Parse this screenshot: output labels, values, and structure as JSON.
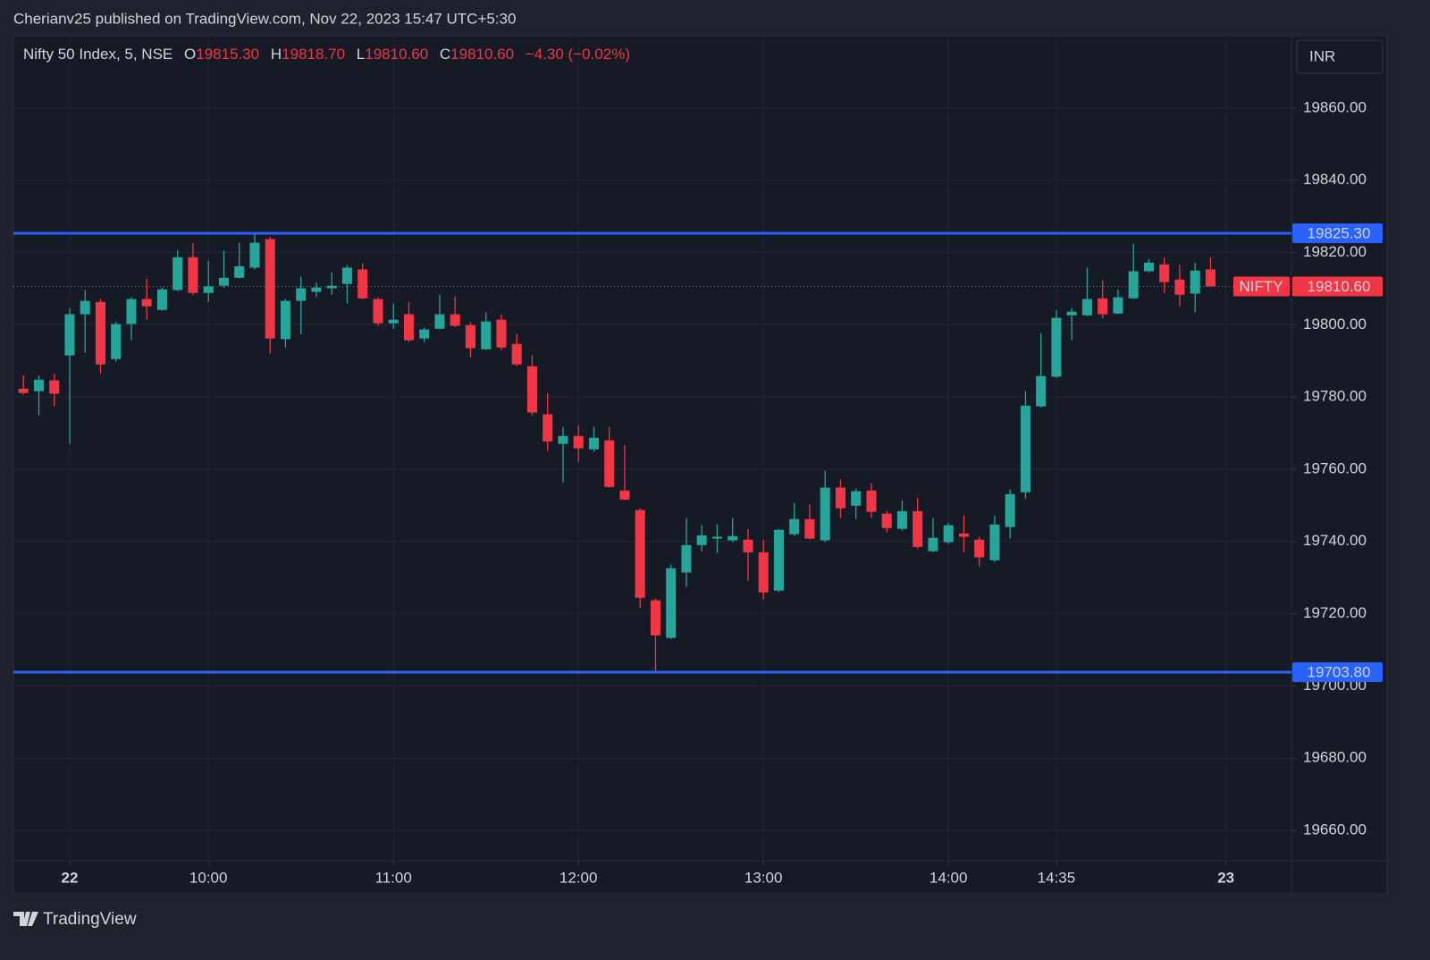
{
  "header": {
    "published": "Cherianv25 published on TradingView.com, Nov 22, 2023 15:47 UTC+5:30",
    "symbol": "Nifty 50 Index, 5, NSE",
    "ohlc": [
      {
        "label": "O",
        "value": "19815.30"
      },
      {
        "label": "H",
        "value": "19818.70"
      },
      {
        "label": "L",
        "value": "19810.60"
      },
      {
        "label": "C",
        "value": "19810.60"
      }
    ],
    "change": "−4.30 (−0.02%)"
  },
  "footer": {
    "brand": "TradingView"
  },
  "chart_data": {
    "type": "candlestick",
    "currency": "INR",
    "up_color": "#26a69a",
    "down_color": "#f23645",
    "grid": true,
    "x": [
      -3,
      -2,
      -1,
      0,
      1,
      2,
      3,
      4,
      5,
      6,
      7,
      8,
      9,
      10,
      11,
      12,
      13,
      14,
      15,
      16,
      17,
      18,
      19,
      20,
      21,
      22,
      23,
      24,
      25,
      26,
      27,
      28,
      29,
      30,
      31,
      32,
      33,
      34,
      35,
      36,
      37,
      38,
      39,
      40,
      41,
      42,
      43,
      44,
      45,
      46,
      47,
      48,
      49,
      50,
      51,
      52,
      53,
      54,
      55,
      56,
      57,
      58,
      59,
      60,
      61,
      62,
      63,
      64,
      65,
      66,
      67,
      68,
      69,
      70,
      71,
      72,
      73,
      74
    ],
    "open": [
      19782.3,
      19781.6,
      19784.6,
      19791.5,
      19802.9,
      19806.3,
      19790.5,
      19800.2,
      19807.1,
      19804.1,
      19809.6,
      19818.7,
      19808.8,
      19810.8,
      19813.0,
      19815.8,
      19823.7,
      19796.0,
      19806.6,
      19809.1,
      19810.1,
      19811.3,
      19815.3,
      19807.1,
      19800.4,
      19802.9,
      19796.2,
      19798.9,
      19802.9,
      19799.9,
      19793.2,
      19801.4,
      19794.7,
      19788.5,
      19775.2,
      19767.0,
      19769.2,
      19765.5,
      19768.0,
      19754.1,
      19748.7,
      19723.7,
      19713.3,
      19731.4,
      19739.0,
      19740.8,
      19740.3,
      19740.5,
      19737.0,
      19726.4,
      19742.0,
      19746.2,
      19740.3,
      19754.9,
      19749.9,
      19754.1,
      19747.7,
      19743.5,
      19748.4,
      19737.3,
      19739.8,
      19742.2,
      19740.5,
      19734.8,
      19744.0,
      19753.6,
      19777.4,
      19785.6,
      19802.6,
      19802.6,
      19807.3,
      19803.1,
      19807.3,
      19814.8,
      19816.7,
      19812.5,
      19808.6,
      19815.3
    ],
    "high": [
      19786.0,
      19786.0,
      19786.5,
      19804.6,
      19809.6,
      19807.1,
      19800.9,
      19807.6,
      19812.8,
      19810.3,
      19820.7,
      19822.7,
      19817.7,
      19820.5,
      19822.7,
      19825.3,
      19824.4,
      19807.1,
      19813.3,
      19811.8,
      19814.5,
      19816.5,
      19817.0,
      19807.6,
      19805.9,
      19806.3,
      19799.2,
      19808.3,
      19807.8,
      19800.7,
      19803.4,
      19802.9,
      19797.4,
      19791.5,
      19781.1,
      19771.7,
      19772.2,
      19771.7,
      19771.7,
      19766.7,
      19749.2,
      19724.2,
      19733.6,
      19746.5,
      19744.5,
      19744.7,
      19746.5,
      19743.5,
      19740.5,
      19743.5,
      19750.7,
      19750.2,
      19759.6,
      19757.1,
      19754.6,
      19756.1,
      19748.4,
      19751.4,
      19752.1,
      19746.5,
      19745.2,
      19747.2,
      19741.3,
      19747.2,
      19754.4,
      19781.6,
      19797.7,
      19804.1,
      19804.6,
      19815.8,
      19812.3,
      19809.8,
      19822.4,
      19818.2,
      19818.7,
      19816.5,
      19817.2,
      19818.7
    ],
    "low": [
      19780.6,
      19774.9,
      19777.4,
      19767.0,
      19792.2,
      19786.5,
      19789.8,
      19795.7,
      19801.4,
      19803.9,
      19809.3,
      19808.3,
      19806.3,
      19810.3,
      19812.8,
      19815.3,
      19792.0,
      19793.7,
      19797.4,
      19807.6,
      19808.3,
      19805.9,
      19807.1,
      19799.7,
      19798.9,
      19795.2,
      19795.2,
      19798.7,
      19799.4,
      19791.0,
      19793.0,
      19793.0,
      19788.5,
      19774.9,
      19765.0,
      19756.4,
      19762.0,
      19764.8,
      19754.9,
      19751.4,
      19721.7,
      19703.8,
      19713.0,
      19727.4,
      19737.3,
      19736.8,
      19739.8,
      19729.1,
      19723.9,
      19725.9,
      19741.5,
      19740.5,
      19739.8,
      19746.5,
      19746.2,
      19746.5,
      19742.5,
      19743.0,
      19738.0,
      19737.0,
      19739.3,
      19737.0,
      19733.1,
      19734.3,
      19740.8,
      19751.9,
      19777.1,
      19785.3,
      19795.7,
      19802.4,
      19801.9,
      19802.9,
      19807.1,
      19814.5,
      19808.8,
      19805.1,
      19803.4,
      19810.6
    ],
    "close": [
      19781.1,
      19784.8,
      19780.9,
      19802.9,
      19806.6,
      19789.0,
      19800.2,
      19807.1,
      19805.1,
      19809.8,
      19818.7,
      19808.8,
      19810.6,
      19813.0,
      19816.2,
      19822.7,
      19796.2,
      19806.6,
      19810.1,
      19810.3,
      19810.8,
      19815.8,
      19807.3,
      19800.4,
      19801.4,
      19795.7,
      19798.7,
      19802.9,
      19799.7,
      19793.5,
      19800.9,
      19793.7,
      19789.0,
      19775.7,
      19767.7,
      19769.2,
      19765.8,
      19768.7,
      19755.1,
      19751.6,
      19724.4,
      19714.0,
      19732.6,
      19739.0,
      19741.7,
      19741.3,
      19741.5,
      19737.0,
      19725.9,
      19743.2,
      19746.2,
      19740.8,
      19754.9,
      19749.2,
      19753.9,
      19748.2,
      19743.7,
      19748.4,
      19738.5,
      19741.0,
      19744.5,
      19741.3,
      19735.6,
      19744.7,
      19753.1,
      19777.6,
      19785.8,
      19801.9,
      19803.6,
      19807.1,
      19802.9,
      19807.6,
      19814.8,
      19817.2,
      19811.8,
      19808.3,
      19815.0,
      19810.6
    ],
    "xlim": [
      -3.65,
      79.25
    ],
    "ylim": [
      19651.6,
      19880.0
    ],
    "xticks": [
      {
        "value": 0,
        "label": "22"
      },
      {
        "value": 9,
        "label": "10:00"
      },
      {
        "value": 21,
        "label": "11:00"
      },
      {
        "value": 33,
        "label": "12:00"
      },
      {
        "value": 45,
        "label": "13:00"
      },
      {
        "value": 57,
        "label": "14:00"
      },
      {
        "value": 64,
        "label": "14:35"
      },
      {
        "value": 75,
        "label": "23"
      }
    ],
    "yticks": [
      {
        "value": 19660,
        "label": "19660.00"
      },
      {
        "value": 19680,
        "label": "19680.00"
      },
      {
        "value": 19700,
        "label": "19700.00"
      },
      {
        "value": 19720,
        "label": "19720.00"
      },
      {
        "value": 19740,
        "label": "19740.00"
      },
      {
        "value": 19760,
        "label": "19760.00"
      },
      {
        "value": 19780,
        "label": "19780.00"
      },
      {
        "value": 19800,
        "label": "19800.00"
      },
      {
        "value": 19820,
        "label": "19820.00"
      },
      {
        "value": 19840,
        "label": "19840.00"
      },
      {
        "value": 19860,
        "label": "19860.00"
      }
    ],
    "hlines": [
      {
        "value": 19825.3,
        "label": "19825.30",
        "color": "#2962ff"
      },
      {
        "value": 19703.8,
        "label": "19703.80",
        "color": "#2962ff"
      }
    ],
    "last_price": {
      "name": "NIFTY",
      "value": 19810.6,
      "label": "19810.60",
      "color": "#f23645"
    }
  }
}
